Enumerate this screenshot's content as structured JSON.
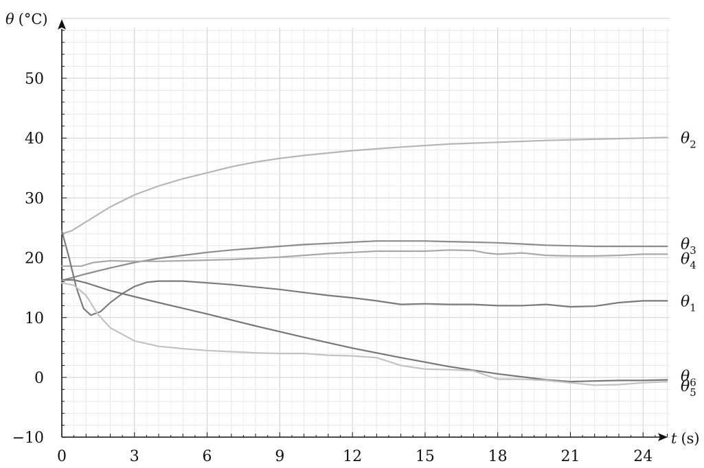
{
  "chart_data": {
    "type": "line",
    "xlabel": {
      "symbol": "t",
      "unit": "(s)"
    },
    "ylabel": {
      "symbol": "θ",
      "unit": "(°C)"
    },
    "xlim": [
      0,
      25
    ],
    "ylim": [
      -10,
      60
    ],
    "xticks": [
      0,
      3,
      6,
      9,
      12,
      15,
      18,
      21,
      24
    ],
    "yticks": [
      -10,
      0,
      10,
      20,
      30,
      40,
      50
    ],
    "ytick_labels": [
      "−10",
      "0",
      "10",
      "20",
      "30",
      "40",
      "50"
    ],
    "grid": true,
    "series": [
      {
        "name": "θ2",
        "symbol": "θ",
        "subscript": "2",
        "color": "#b5b5b5",
        "x": [
          0,
          0.4,
          1,
          2,
          3,
          4,
          5,
          6,
          7,
          8,
          9,
          10,
          12,
          14,
          16,
          18,
          20,
          22,
          24,
          25
        ],
        "y": [
          24,
          24.5,
          26,
          28.5,
          30.5,
          32,
          33.2,
          34.2,
          35.2,
          36,
          36.6,
          37.1,
          37.9,
          38.5,
          39,
          39.3,
          39.6,
          39.8,
          40,
          40.1
        ]
      },
      {
        "name": "θ3",
        "symbol": "θ",
        "subscript": "3",
        "color": "#8c8c8c",
        "x": [
          0,
          1,
          2,
          3,
          4,
          5,
          6,
          7,
          8,
          9,
          10,
          11,
          12,
          13,
          14,
          15,
          16,
          17,
          18,
          19,
          20,
          21,
          22,
          23,
          24,
          25
        ],
        "y": [
          16.2,
          17.3,
          18.3,
          19.2,
          19.9,
          20.4,
          20.9,
          21.3,
          21.6,
          21.9,
          22.2,
          22.4,
          22.6,
          22.8,
          22.8,
          22.8,
          22.7,
          22.6,
          22.5,
          22.3,
          22.1,
          22,
          21.9,
          21.9,
          21.9,
          21.9
        ]
      },
      {
        "name": "θ4",
        "symbol": "θ",
        "subscript": "4",
        "color": "#a8a8a8",
        "x": [
          0,
          0.8,
          1.3,
          2,
          3,
          4,
          5,
          6,
          7,
          8,
          9,
          10,
          11,
          12,
          13,
          14,
          15,
          16,
          17,
          17.5,
          18,
          19,
          20,
          21,
          22,
          23,
          24,
          25
        ],
        "y": [
          18.6,
          18.6,
          19.2,
          19.5,
          19.4,
          19.4,
          19.5,
          19.6,
          19.7,
          19.9,
          20.1,
          20.4,
          20.7,
          20.9,
          21.1,
          21.1,
          21.1,
          21.3,
          21.2,
          20.8,
          20.6,
          20.8,
          20.4,
          20.3,
          20.3,
          20.4,
          20.6,
          20.6
        ]
      },
      {
        "name": "θ1",
        "symbol": "θ",
        "subscript": "1",
        "color": "#7a7a7a",
        "x": [
          0,
          0.3,
          0.6,
          0.9,
          1.2,
          1.6,
          2,
          2.5,
          3,
          3.5,
          4,
          5,
          6,
          7,
          8,
          9,
          10,
          11,
          12,
          13,
          14,
          15,
          16,
          17,
          18,
          19,
          20,
          21,
          22,
          23,
          24,
          25
        ],
        "y": [
          24.5,
          20,
          15,
          11.5,
          10.4,
          11,
          12.5,
          14,
          15.2,
          15.9,
          16.1,
          16.1,
          15.8,
          15.5,
          15.1,
          14.7,
          14.2,
          13.7,
          13.3,
          12.8,
          12.2,
          12.3,
          12.2,
          12.2,
          12,
          12,
          12.2,
          11.8,
          11.9,
          12.5,
          12.8,
          12.8
        ]
      },
      {
        "name": "θ6",
        "symbol": "θ",
        "subscript": "6",
        "color": "#777777",
        "x": [
          0,
          0.5,
          1,
          2,
          4,
          6,
          8,
          10,
          12,
          14,
          16,
          18,
          20,
          21,
          22,
          23,
          24,
          25
        ],
        "y": [
          16.3,
          16.3,
          15.8,
          14.5,
          12.5,
          10.6,
          8.6,
          6.7,
          4.9,
          3.3,
          1.8,
          0.6,
          -0.4,
          -0.7,
          -0.6,
          -0.5,
          -0.5,
          -0.4
        ]
      },
      {
        "name": "θ5",
        "symbol": "θ",
        "subscript": "5",
        "color": "#c2c2c2",
        "x": [
          0,
          0.5,
          1,
          1.5,
          2,
          3,
          4,
          5,
          6,
          7,
          8,
          9,
          10,
          11,
          12,
          13,
          14,
          15,
          16,
          17,
          18,
          19,
          20,
          21,
          22,
          23,
          24,
          25
        ],
        "y": [
          15.8,
          15.4,
          13.7,
          10.5,
          8.3,
          6.1,
          5.2,
          4.8,
          4.5,
          4.3,
          4.1,
          4,
          4,
          3.7,
          3.6,
          3.3,
          2,
          1.4,
          1.3,
          1.1,
          -0.3,
          -0.3,
          -0.5,
          -0.9,
          -1.3,
          -1.2,
          -0.9,
          -0.7
        ]
      }
    ]
  }
}
